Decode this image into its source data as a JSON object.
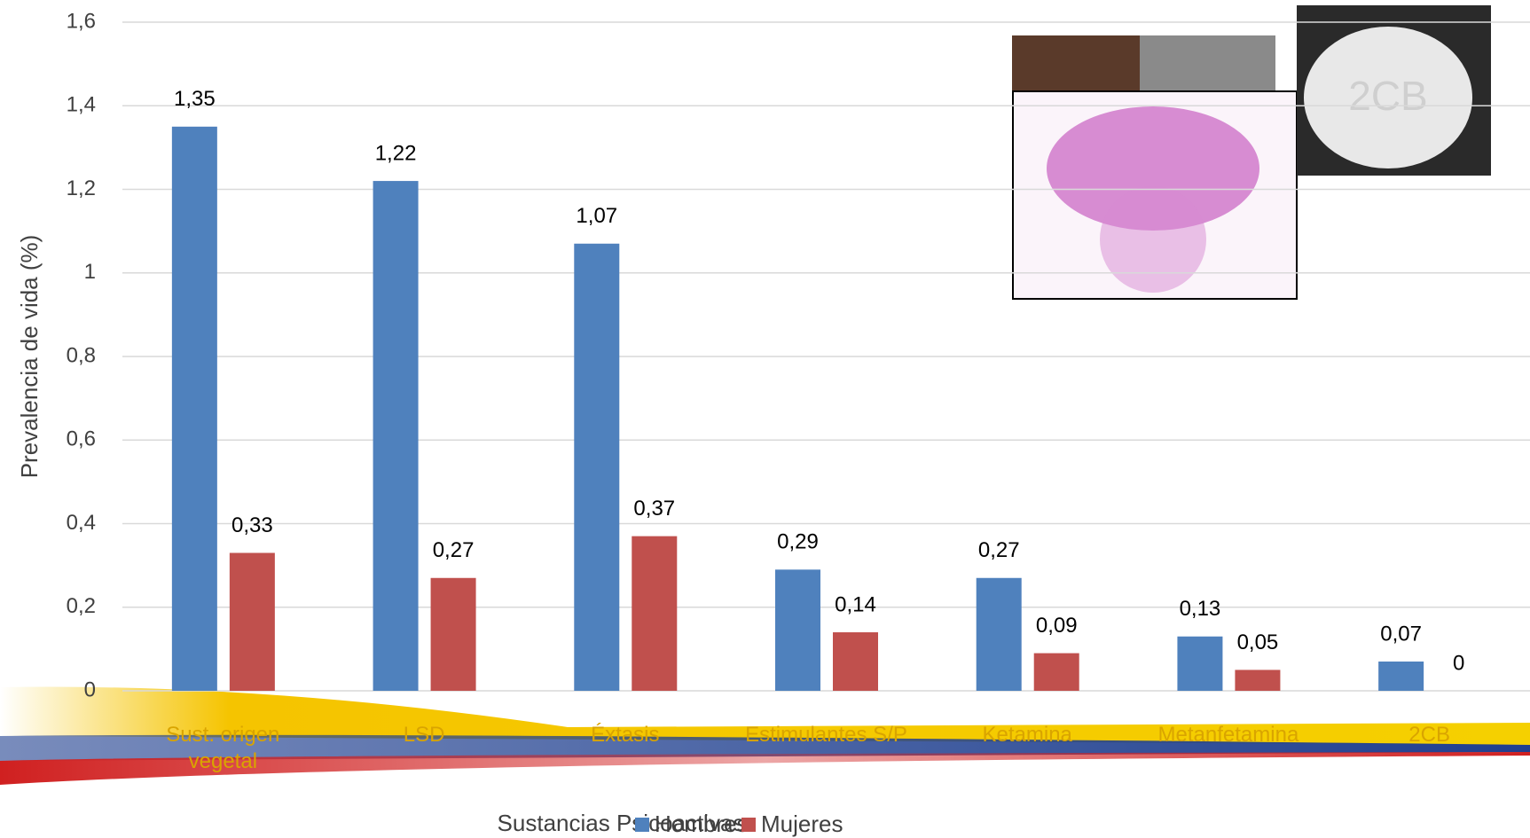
{
  "chart_data": {
    "type": "bar",
    "x_label": "Sustancias Psicoactivas",
    "y_label": "Prevalencia de vida (%)",
    "categories": [
      "Sust. origen vegetal",
      "LSD",
      "Éxtasis",
      "Estimulantes S/P",
      "Ketamina",
      "Metanfetamina",
      "2CB"
    ],
    "series": [
      {
        "name": "Hombres",
        "color": "#4f81bd",
        "values": [
          1.35,
          1.22,
          1.07,
          0.29,
          0.27,
          0.13,
          0.07
        ],
        "value_labels": [
          "1,35",
          "1,22",
          "1,07",
          "0,29",
          "0,27",
          "0,13",
          "0,07"
        ]
      },
      {
        "name": "Mujeres",
        "color": "#c0504d",
        "values": [
          0.33,
          0.27,
          0.37,
          0.14,
          0.09,
          0.05,
          0
        ],
        "value_labels": [
          "0,33",
          "0,27",
          "0,37",
          "0,14",
          "0,09",
          "0,05",
          "0"
        ]
      }
    ],
    "ylim": [
      0,
      1.6
    ],
    "yticks": [
      0,
      {
        "value": 0.2,
        "label": "0,2"
      },
      {
        "value": 0.4,
        "label": "0,4"
      },
      {
        "value": 0.6,
        "label": "0,6"
      },
      {
        "value": 0.8,
        "label": "0,8"
      },
      1,
      {
        "value": 1.2,
        "label": "1,2"
      },
      {
        "value": 1.4,
        "label": "1,4"
      },
      {
        "value": 1.6,
        "label": "1,6"
      }
    ],
    "grid": true,
    "legend": "bottom"
  }
}
